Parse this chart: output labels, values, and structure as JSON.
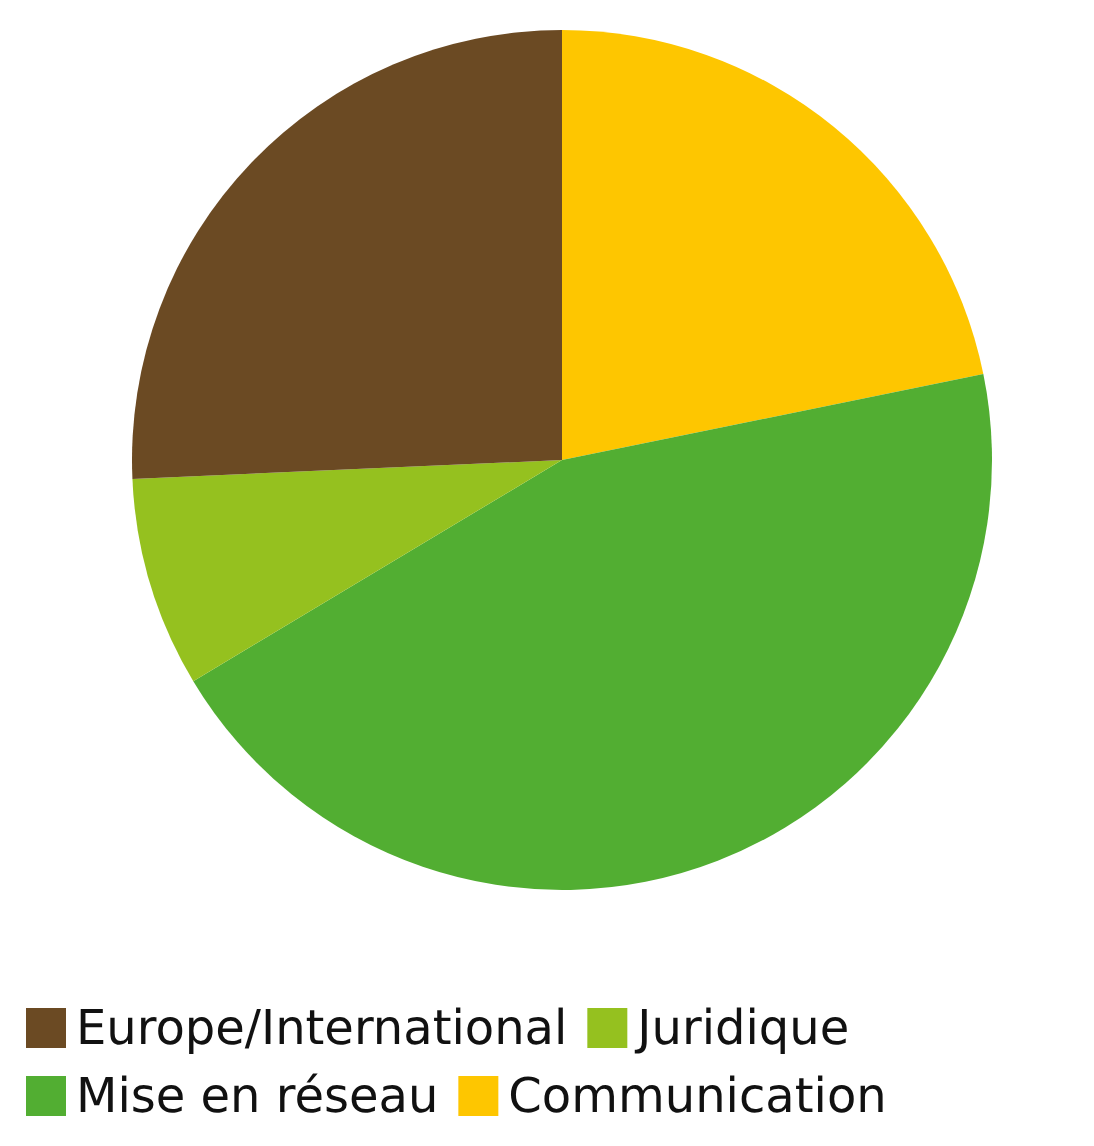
{
  "chart_data": {
    "type": "pie",
    "categories": [
      "Europe/International",
      "Juridique",
      "Mise en réseau",
      "Communication"
    ],
    "values": [
      25.7,
      7.9,
      44.6,
      21.8
    ],
    "colors": [
      "#6b4a23",
      "#95c11f",
      "#52ae32",
      "#fec600"
    ],
    "legend": "bottom"
  }
}
